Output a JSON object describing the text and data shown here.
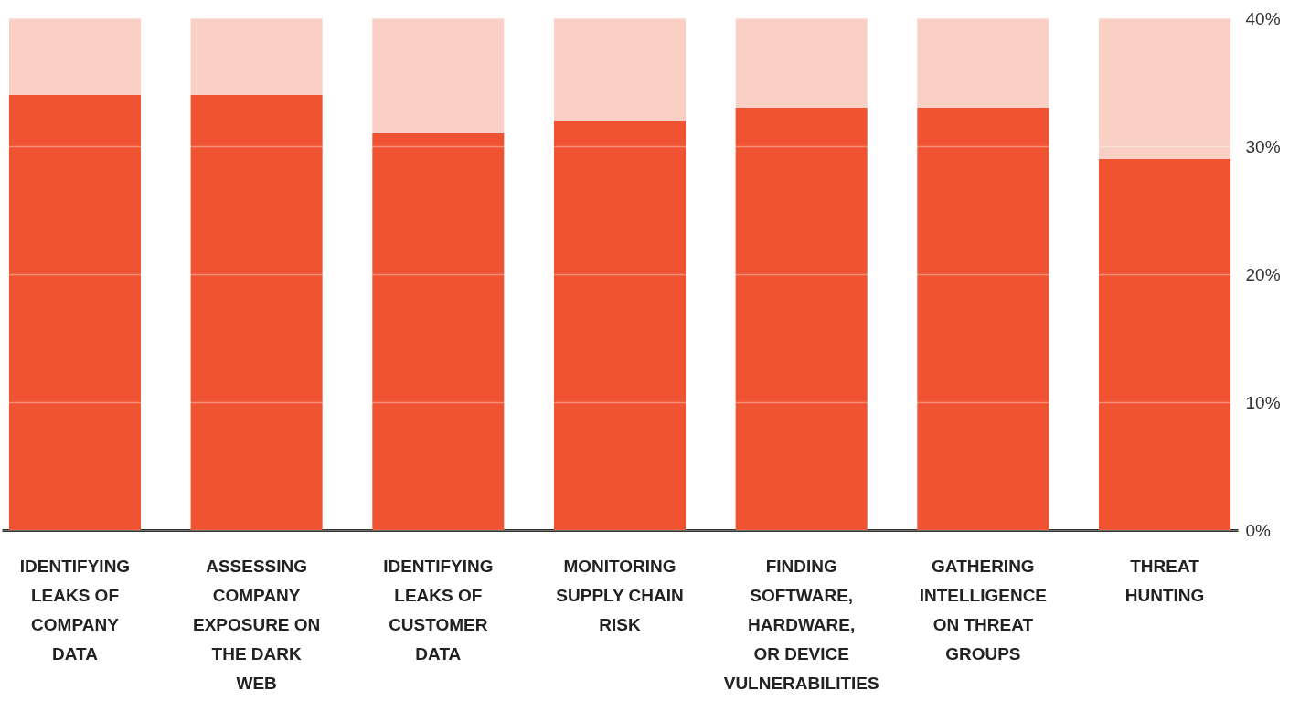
{
  "chart_data": {
    "type": "bar",
    "stacked": true,
    "categories": [
      "IDENTIFYING LEAKS OF COMPANY DATA",
      "ASSESSING COMPANY EXPOSURE ON THE DARK WEB",
      "IDENTIFYING LEAKS OF CUSTOMER DATA",
      "MONITORING SUPPLY CHAIN RISK",
      "FINDING SOFTWARE, HARDWARE, OR DEVICE VULNERABILITIES",
      "GATHERING INTELLIGENCE ON THREAT GROUPS",
      "THREAT HUNTING"
    ],
    "series": [
      {
        "color": "#f05331",
        "values": [
          34,
          34,
          31,
          32,
          33,
          33,
          29
        ]
      },
      {
        "color": "#fad0c4",
        "values": [
          6,
          6,
          9,
          8,
          7,
          7,
          11
        ]
      }
    ],
    "ylim": [
      0,
      40
    ],
    "yticks": [
      {
        "value": 0,
        "label": "0%"
      },
      {
        "value": 10,
        "label": "10%"
      },
      {
        "value": 20,
        "label": "20%"
      },
      {
        "value": 30,
        "label": "30%"
      },
      {
        "value": 40,
        "label": "40%"
      }
    ],
    "grid": "y"
  }
}
